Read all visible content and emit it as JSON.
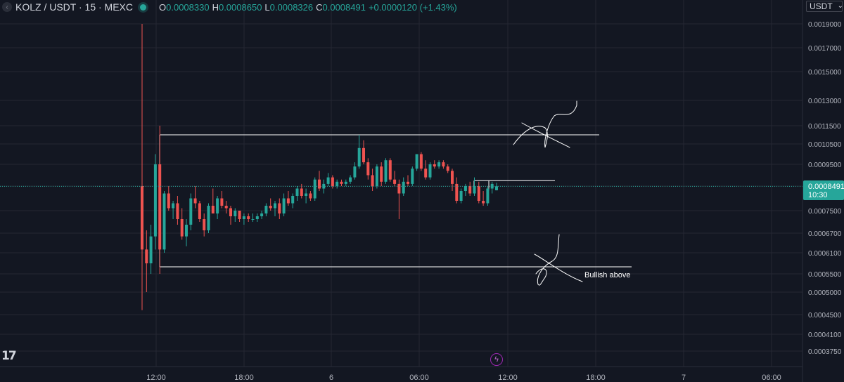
{
  "header": {
    "back_icon": "chevron-left-icon",
    "symbol": "KOLZ / USDT · 15 · MEXC",
    "status_color": "#26a69a",
    "open_label": "O",
    "open_value": "0.0008330",
    "high_label": "H",
    "high_value": "0.0008650",
    "low_label": "L",
    "low_value": "0.0008326",
    "close_label": "C",
    "close_value": "0.0008491",
    "change": "+0.0000120 (+1.43%)"
  },
  "currency": {
    "label": "USDT",
    "icon": "chevron-down-icon"
  },
  "colors": {
    "up": "#26a69a",
    "down": "#ef5350",
    "background": "#131722",
    "grid": "#242733",
    "annotation": "#ffffff"
  },
  "price_tag": {
    "value": "0.0008491",
    "countdown": "10:30",
    "color": "#26a69a"
  },
  "annotation": {
    "text": "Bullish above"
  },
  "chart_data": {
    "type": "candlestick",
    "interval": "15",
    "y_ticks": [
      "0.0019000",
      "0.0017000",
      "0.0015000",
      "0.0013000",
      "0.0011500",
      "0.0010500",
      "0.0009500",
      "0.0008500",
      "0.0007500",
      "0.0006700",
      "0.0006100",
      "0.0005500",
      "0.0005000",
      "0.0004500",
      "0.0004100",
      "0.0003750"
    ],
    "x_ticks": [
      "12:00",
      "18:00",
      "6",
      "06:00",
      "12:00",
      "18:00",
      "7",
      "06:00"
    ],
    "last_price": 0.0008491,
    "drawn_levels": [
      0.0011,
      0.00057,
      0.000875
    ],
    "candles_ohlc": [
      [
        0.00085,
        0.0019,
        0.00046,
        0.00062
      ],
      [
        0.00062,
        0.00068,
        0.0005,
        0.00058
      ],
      [
        0.00058,
        0.0007,
        0.00055,
        0.00066
      ],
      [
        0.00066,
        0.001,
        0.00062,
        0.00095
      ],
      [
        0.00095,
        0.00115,
        0.00055,
        0.00062
      ],
      [
        0.00062,
        0.00083,
        0.00061,
        0.00082
      ],
      [
        0.00082,
        0.00085,
        0.00075,
        0.00076
      ],
      [
        0.00076,
        0.00079,
        0.00072,
        0.00078
      ],
      [
        0.00078,
        0.00081,
        0.0007,
        0.00072
      ],
      [
        0.00072,
        0.00076,
        0.00065,
        0.00066
      ],
      [
        0.00066,
        0.00072,
        0.00063,
        0.0007
      ],
      [
        0.0007,
        0.00082,
        0.00068,
        0.0008
      ],
      [
        0.0008,
        0.00085,
        0.00076,
        0.00078
      ],
      [
        0.00078,
        0.00079,
        0.00071,
        0.00072
      ],
      [
        0.00072,
        0.00074,
        0.00066,
        0.00068
      ],
      [
        0.00068,
        0.00078,
        0.00067,
        0.00077
      ],
      [
        0.00077,
        0.00084,
        0.00074,
        0.00074
      ],
      [
        0.00074,
        0.00081,
        0.00072,
        0.0008
      ],
      [
        0.0008,
        0.00083,
        0.00076,
        0.00077
      ],
      [
        0.00077,
        0.00079,
        0.00074,
        0.00076
      ],
      [
        0.00076,
        0.00077,
        0.0007,
        0.00073
      ],
      [
        0.00073,
        0.00076,
        0.00071,
        0.00075
      ],
      [
        0.00075,
        0.00075,
        0.00071,
        0.00072
      ],
      [
        0.00072,
        0.00074,
        0.0007,
        0.00073
      ],
      [
        0.00073,
        0.00074,
        0.00071,
        0.00072
      ],
      [
        0.00072,
        0.00074,
        0.00071,
        0.00072
      ],
      [
        0.00072,
        0.00074,
        0.00071,
        0.00073
      ],
      [
        0.00073,
        0.00075,
        0.00072,
        0.00074
      ],
      [
        0.00074,
        0.00078,
        0.00073,
        0.00077
      ],
      [
        0.00077,
        0.0008,
        0.00075,
        0.00076
      ],
      [
        0.00076,
        0.00079,
        0.00073,
        0.00078
      ],
      [
        0.00078,
        0.0008,
        0.00072,
        0.00074
      ],
      [
        0.00074,
        0.00082,
        0.00073,
        0.0008
      ],
      [
        0.0008,
        0.00083,
        0.00077,
        0.00078
      ],
      [
        0.00078,
        0.00082,
        0.00076,
        0.00081
      ],
      [
        0.00081,
        0.00085,
        0.00079,
        0.00084
      ],
      [
        0.00084,
        0.00086,
        0.0008,
        0.00081
      ],
      [
        0.00081,
        0.00084,
        0.00078,
        0.00082
      ],
      [
        0.00082,
        0.00083,
        0.00079,
        0.0008
      ],
      [
        0.0008,
        0.00089,
        0.00079,
        0.00088
      ],
      [
        0.00088,
        0.00092,
        0.00083,
        0.00084
      ],
      [
        0.00084,
        0.00088,
        0.00082,
        0.00086
      ],
      [
        0.00086,
        0.00091,
        0.00085,
        0.00089
      ],
      [
        0.00089,
        0.0009,
        0.00084,
        0.00085
      ],
      [
        0.00085,
        0.00088,
        0.00084,
        0.00087
      ],
      [
        0.00087,
        0.00088,
        0.00085,
        0.00086
      ],
      [
        0.00086,
        0.00088,
        0.00085,
        0.00087
      ],
      [
        0.00087,
        0.0009,
        0.00086,
        0.00089
      ],
      [
        0.00089,
        0.00096,
        0.00088,
        0.00094
      ],
      [
        0.00094,
        0.0011,
        0.00093,
        0.00103
      ],
      [
        0.00103,
        0.00107,
        0.00095,
        0.00096
      ],
      [
        0.00096,
        0.00098,
        0.00088,
        0.0009
      ],
      [
        0.0009,
        0.00093,
        0.00083,
        0.00085
      ],
      [
        0.00085,
        0.00095,
        0.00084,
        0.00094
      ],
      [
        0.00094,
        0.00096,
        0.00085,
        0.00087
      ],
      [
        0.00087,
        0.00098,
        0.00086,
        0.00097
      ],
      [
        0.00097,
        0.00098,
        0.00087,
        0.00088
      ],
      [
        0.00088,
        0.00092,
        0.00085,
        0.00086
      ],
      [
        0.00086,
        0.00088,
        0.00072,
        0.00082
      ],
      [
        0.00082,
        0.00089,
        0.00081,
        0.00087
      ],
      [
        0.00087,
        0.0009,
        0.00085,
        0.00086
      ],
      [
        0.00086,
        0.00094,
        0.00085,
        0.00093
      ],
      [
        0.00093,
        0.001,
        0.00092,
        0.001
      ],
      [
        0.001,
        0.00101,
        0.00092,
        0.00093
      ],
      [
        0.00093,
        0.00097,
        0.00088,
        0.00089
      ],
      [
        0.00089,
        0.00096,
        0.00088,
        0.00095
      ],
      [
        0.00095,
        0.00097,
        0.00093,
        0.00094
      ],
      [
        0.00094,
        0.00097,
        0.00093,
        0.00096
      ],
      [
        0.00096,
        0.00097,
        0.00093,
        0.00094
      ],
      [
        0.00094,
        0.00095,
        0.00091,
        0.00092
      ],
      [
        0.00092,
        0.00093,
        0.00083,
        0.00086
      ],
      [
        0.00086,
        0.00089,
        0.00078,
        0.00079
      ],
      [
        0.00079,
        0.00084,
        0.00078,
        0.00083
      ],
      [
        0.00083,
        0.00086,
        0.00081,
        0.00085
      ],
      [
        0.00085,
        0.00087,
        0.00081,
        0.00082
      ],
      [
        0.00082,
        0.00089,
        0.00081,
        0.00085
      ],
      [
        0.00085,
        0.00087,
        0.00078,
        0.00079
      ],
      [
        0.00079,
        0.00083,
        0.00077,
        0.00078
      ],
      [
        0.00078,
        0.00085,
        0.00077,
        0.00084
      ],
      [
        0.00084,
        0.00087,
        0.00082,
        0.00086
      ],
      [
        0.000833,
        0.000865,
        0.0008326,
        0.0008491
      ]
    ]
  }
}
